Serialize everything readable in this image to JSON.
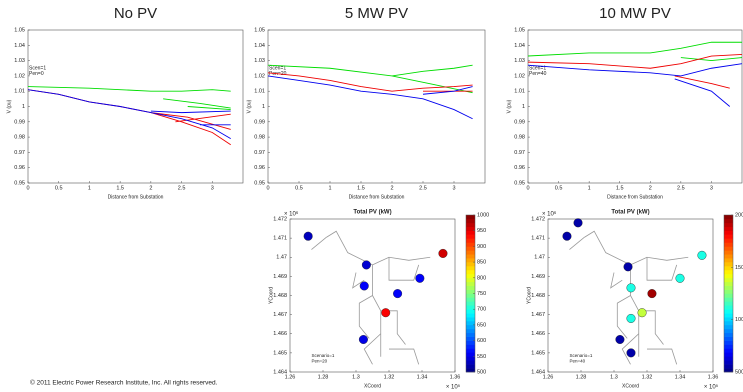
{
  "footer": "© 2011 Electric Power Research Institute, Inc. All rights reserved.",
  "chart_data": [
    {
      "type": "line",
      "title": "No PV",
      "x_label": "Distance from Substation",
      "y_label": "V (pu)",
      "annotations": [
        "Scen=1",
        "Pen=0"
      ],
      "xlim": [
        0,
        3.5
      ],
      "xticks": [
        0,
        0.5,
        1,
        1.5,
        2,
        2.5,
        3
      ],
      "ylim": [
        0.95,
        1.05
      ],
      "yticks": [
        0.95,
        0.96,
        0.97,
        0.98,
        0.99,
        1,
        1.01,
        1.02,
        1.03,
        1.04,
        1.05
      ],
      "series": [
        {
          "color": "#00dd00",
          "x": [
            0,
            1,
            2,
            2.5,
            3,
            3.3,
            null,
            2.2,
            2.8,
            3.3,
            null,
            2.6,
            3.3
          ],
          "values": [
            1.013,
            1.012,
            1.01,
            1.01,
            1.011,
            1.01,
            null,
            1.005,
            1.002,
            0.999,
            null,
            1.0,
            0.998
          ]
        },
        {
          "color": "#ee0000",
          "x": [
            0,
            0.5,
            1,
            1.5,
            2,
            2.5,
            3,
            3.3,
            null,
            2,
            2.6,
            3.3,
            null,
            2.4,
            3.3
          ],
          "values": [
            1.011,
            1.008,
            1.003,
            1.0,
            0.996,
            0.99,
            0.983,
            0.975,
            null,
            0.996,
            0.993,
            0.985,
            null,
            0.99,
            0.995
          ]
        },
        {
          "color": "#0000ee",
          "x": [
            0,
            0.5,
            1,
            1.5,
            2,
            2.5,
            3,
            3.3,
            null,
            2,
            2.5,
            3.3,
            null,
            2.8,
            3.3
          ],
          "values": [
            1.011,
            1.008,
            1.003,
            1.0,
            0.996,
            0.992,
            0.986,
            0.979,
            null,
            0.997,
            0.996,
            0.997,
            null,
            0.988,
            0.988
          ]
        }
      ]
    },
    {
      "type": "line",
      "title": "5 MW PV",
      "x_label": "Distance from Substation",
      "y_label": "V (pu)",
      "annotations": [
        "Scen=1",
        "Pen=20"
      ],
      "xlim": [
        0,
        3.5
      ],
      "xticks": [
        0,
        0.5,
        1,
        1.5,
        2,
        2.5,
        3
      ],
      "ylim": [
        0.95,
        1.05
      ],
      "yticks": [
        0.95,
        0.96,
        0.97,
        0.98,
        0.99,
        1,
        1.01,
        1.02,
        1.03,
        1.04,
        1.05
      ],
      "series": [
        {
          "color": "#00dd00",
          "x": [
            0,
            1,
            2,
            2.5,
            3,
            3.3,
            null,
            2,
            2.6,
            3.3
          ],
          "values": [
            1.027,
            1.025,
            1.02,
            1.023,
            1.025,
            1.027,
            null,
            1.02,
            1.015,
            1.009
          ]
        },
        {
          "color": "#ee0000",
          "x": [
            0,
            0.5,
            1,
            1.5,
            2,
            2.5,
            3,
            3.3,
            null,
            2.5,
            3.3
          ],
          "values": [
            1.022,
            1.02,
            1.017,
            1.013,
            1.01,
            1.012,
            1.013,
            1.014,
            null,
            1.01,
            1.01
          ]
        },
        {
          "color": "#0000ee",
          "x": [
            0,
            0.5,
            1,
            1.5,
            2,
            2.5,
            3,
            3.3,
            null,
            2.5,
            3,
            3.3
          ],
          "values": [
            1.02,
            1.017,
            1.014,
            1.01,
            1.008,
            1.005,
            0.998,
            0.992,
            null,
            1.008,
            1.01,
            1.013
          ]
        }
      ]
    },
    {
      "type": "line",
      "title": "10 MW PV",
      "x_label": "Distance from Substation",
      "y_label": "V (pu)",
      "annotations": [
        "Scen=1",
        "Pen=40"
      ],
      "xlim": [
        0,
        3.5
      ],
      "xticks": [
        0,
        0.5,
        1,
        1.5,
        2,
        2.5,
        3
      ],
      "ylim": [
        0.95,
        1.05
      ],
      "yticks": [
        0.95,
        0.96,
        0.97,
        0.98,
        0.99,
        1,
        1.01,
        1.02,
        1.03,
        1.04,
        1.05
      ],
      "series": [
        {
          "color": "#00dd00",
          "x": [
            0,
            1,
            2,
            2.5,
            3,
            3.5,
            null,
            2.5,
            3,
            3.5
          ],
          "values": [
            1.033,
            1.035,
            1.035,
            1.038,
            1.042,
            1.042,
            null,
            1.032,
            1.03,
            1.032
          ]
        },
        {
          "color": "#ee0000",
          "x": [
            0,
            1,
            2,
            2.5,
            3,
            3.5,
            null,
            2.4,
            3,
            3.3
          ],
          "values": [
            1.029,
            1.028,
            1.025,
            1.028,
            1.033,
            1.034,
            null,
            1.02,
            1.015,
            1.012
          ]
        },
        {
          "color": "#0000ee",
          "x": [
            0,
            1,
            2,
            2.5,
            3,
            3.5,
            null,
            2.4,
            3,
            3.3
          ],
          "values": [
            1.027,
            1.024,
            1.022,
            1.02,
            1.025,
            1.028,
            null,
            1.018,
            1.01,
            1.0
          ]
        }
      ]
    },
    {
      "type": "scatter",
      "title": "Total PV (kW)",
      "x_label": "XCoord",
      "y_label": "YCoord",
      "x_scale_label": "× 10⁵",
      "y_scale_label": "× 10⁶",
      "annotations": [
        "Scenario=1",
        "Pen=20"
      ],
      "xlim": [
        1.26,
        1.36
      ],
      "xticks": [
        1.26,
        1.28,
        1.3,
        1.32,
        1.34,
        1.36
      ],
      "ylim": [
        1.464,
        1.472
      ],
      "yticks": [
        1.464,
        1.465,
        1.466,
        1.467,
        1.468,
        1.469,
        1.47,
        1.471,
        1.472
      ],
      "colorbar_lim": [
        500,
        1000
      ],
      "colorbar_ticks": [
        500,
        550,
        600,
        650,
        700,
        750,
        800,
        850,
        900,
        950,
        1000
      ],
      "x": [
        1.271,
        1.3063,
        1.305,
        1.318,
        1.3045,
        1.3387,
        1.3527,
        1.3252
      ],
      "values": [
        1.4711,
        1.4696,
        1.4685,
        1.4671,
        1.4657,
        1.4689,
        1.4702,
        1.4681
      ],
      "color_values": [
        530,
        540,
        560,
        940,
        550,
        560,
        960,
        560
      ]
    },
    {
      "type": "scatter",
      "title": "Total PV (kW)",
      "x_label": "XCoord",
      "y_label": "YCoord",
      "x_scale_label": "× 10⁵",
      "y_scale_label": "× 10⁶",
      "annotations": [
        "Scenario=1",
        "Pen=40"
      ],
      "xlim": [
        1.26,
        1.36
      ],
      "xticks": [
        1.26,
        1.28,
        1.3,
        1.32,
        1.34,
        1.36
      ],
      "ylim": [
        1.464,
        1.472
      ],
      "yticks": [
        1.464,
        1.465,
        1.466,
        1.467,
        1.468,
        1.469,
        1.47,
        1.471,
        1.472
      ],
      "colorbar_lim": [
        500,
        2000
      ],
      "colorbar_ticks": [
        500,
        1000,
        1500,
        2000
      ],
      "x": [
        1.2715,
        1.2782,
        1.3085,
        1.3103,
        1.323,
        1.3103,
        1.317,
        1.3036,
        1.3103,
        1.34,
        1.3533
      ],
      "values": [
        1.4711,
        1.4718,
        1.4695,
        1.4684,
        1.4681,
        1.4668,
        1.4671,
        1.4657,
        1.465,
        1.4689,
        1.4701
      ],
      "color_values": [
        560,
        560,
        560,
        1100,
        1950,
        1100,
        1350,
        560,
        560,
        1100,
        1100
      ]
    }
  ]
}
